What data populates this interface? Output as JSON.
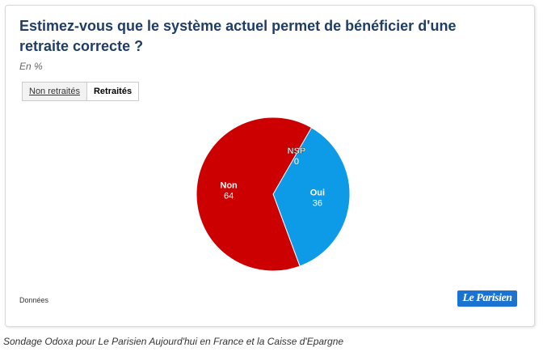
{
  "title": "Estimez-vous que le système actuel permet de bénéficier d'une retraite correcte ?",
  "unit_label": "En %",
  "tabs": [
    {
      "label": "Non retraités",
      "active": false
    },
    {
      "label": "Retraités",
      "active": true
    }
  ],
  "data_link_label": "Données",
  "logo_text": "Le Parisien",
  "source": "Sondage Odoxa pour Le Parisien Aujourd'hui en France et la Caisse d'Epargne",
  "colors": {
    "title": "#1f3d66",
    "non": "#cc0000",
    "oui": "#0d9be8",
    "nsp": "#8c8c8c",
    "logo": "#1a73d1"
  },
  "chart_data": {
    "type": "pie",
    "title": "Estimez-vous que le système actuel permet de bénéficier d'une retraite correcte ?",
    "unit": "En %",
    "slices": [
      {
        "label": "Oui",
        "value": 36,
        "color": "#0d9be8"
      },
      {
        "label": "Non",
        "value": 64,
        "color": "#cc0000"
      },
      {
        "label": "NSP",
        "value": 0,
        "color": "#8c8c8c"
      }
    ]
  }
}
